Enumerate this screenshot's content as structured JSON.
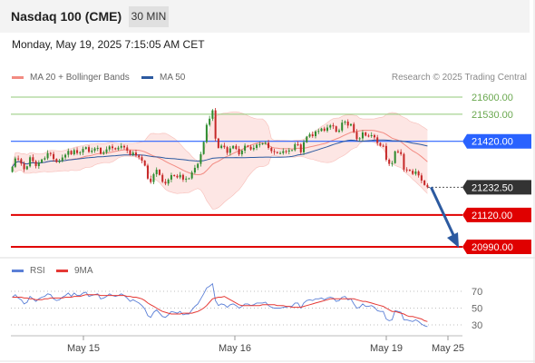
{
  "header": {
    "instrument": "Nasdaq 100 (CME)",
    "timeframe": "30 MIN",
    "datetime": "Monday, May 19, 2025 7:15:05 AM CET"
  },
  "legend": {
    "bb_label": "MA 20 + Bollinger Bands",
    "ma50_label": "MA 50",
    "copyright": "Research © 2025 Trading Central",
    "rsi_label": "RSI",
    "rsi_ma_label": "9MA"
  },
  "colors": {
    "bb": "#f28b82",
    "bb_fill": "#fde3e1",
    "ma50": "#2c5aa0",
    "up_candle": "#2e8b2e",
    "down_candle": "#c62828",
    "support": "#e00000",
    "resistance_line": "#90c978",
    "pivot_line": "#2962ff",
    "pivot_tag": "#2962ff",
    "support_tag": "#e00000",
    "current_tag": "#333333",
    "forecast_arrow": "#2c5aa0",
    "rsi": "#5b7fd6",
    "rsi_ma": "#e53935"
  },
  "chart_data": {
    "type": "candlestick",
    "price_axis": {
      "min": 20990,
      "max": 21600
    },
    "levels": [
      {
        "label": "21600.00",
        "value": 21600,
        "kind": "resistance"
      },
      {
        "label": "21530.00",
        "value": 21530,
        "kind": "resistance"
      },
      {
        "label": "21420.00",
        "value": 21420,
        "kind": "pivot"
      },
      {
        "label": "21232.50",
        "value": 21232.5,
        "kind": "current"
      },
      {
        "label": "21120.00",
        "value": 21120,
        "kind": "support"
      },
      {
        "label": "20990.00",
        "value": 20990,
        "kind": "support"
      }
    ],
    "x_ticks": [
      "May 15",
      "May 16",
      "May 19",
      "May 25"
    ],
    "close_series": [
      21316,
      21350,
      21347,
      21329,
      21306,
      21318,
      21355,
      21339,
      21319,
      21333,
      21346,
      21351,
      21372,
      21368,
      21348,
      21335,
      21341,
      21354,
      21365,
      21381,
      21367,
      21384,
      21372,
      21375,
      21389,
      21396,
      21377,
      21382,
      21391,
      21393,
      21369,
      21375,
      21387,
      21399,
      21392,
      21387,
      21394,
      21401,
      21395,
      21382,
      21365,
      21374,
      21362,
      21355,
      21341,
      21321,
      21268,
      21254,
      21286,
      21304,
      21283,
      21255,
      21248,
      21264,
      21282,
      21279,
      21273,
      21283,
      21264,
      21268,
      21269,
      21293,
      21312,
      21328,
      21368,
      21417,
      21487,
      21512,
      21546,
      21431,
      21393,
      21402,
      21396,
      21373,
      21391,
      21401,
      21389,
      21367,
      21382,
      21402,
      21398,
      21387,
      21393,
      21406,
      21408,
      21411,
      21414,
      21393,
      21380,
      21376,
      21372,
      21372,
      21380,
      21378,
      21383,
      21384,
      21408,
      21407,
      21375,
      21416,
      21439,
      21448,
      21441,
      21460,
      21462,
      21472,
      21463,
      21476,
      21485,
      21481,
      21459,
      21464,
      21496,
      21500,
      21484,
      21490,
      21458,
      21429,
      21432,
      21456,
      21443,
      21441,
      21445,
      21436,
      21413,
      21402,
      21401,
      21345,
      21328,
      21331,
      21379,
      21376,
      21368,
      21305,
      21304,
      21300,
      21287,
      21297,
      21281,
      21260,
      21242,
      21233
    ],
    "open_first": 21295,
    "rsi_axis": {
      "min": 20,
      "max": 80,
      "ticks": [
        70,
        50,
        30
      ]
    },
    "rsi": [
      63,
      66,
      62,
      60,
      55,
      57,
      64,
      61,
      58,
      61,
      63,
      64,
      67,
      66,
      61,
      59,
      60,
      63,
      65,
      68,
      64,
      68,
      65,
      65,
      68,
      69,
      64,
      65,
      66,
      67,
      61,
      62,
      64,
      67,
      65,
      64,
      65,
      67,
      65,
      62,
      58,
      60,
      58,
      56,
      53,
      49,
      41,
      39,
      45,
      48,
      44,
      40,
      39,
      42,
      46,
      45,
      44,
      46,
      42,
      43,
      43,
      48,
      52,
      55,
      61,
      67,
      74,
      76,
      79,
      59,
      53,
      55,
      54,
      51,
      54,
      55,
      53,
      50,
      52,
      55,
      55,
      53,
      54,
      56,
      56,
      56,
      57,
      53,
      51,
      50,
      50,
      50,
      51,
      51,
      52,
      52,
      56,
      56,
      50,
      56,
      59,
      60,
      59,
      61,
      61,
      62,
      60,
      62,
      63,
      62,
      58,
      59,
      63,
      64,
      60,
      61,
      55,
      50,
      51,
      55,
      52,
      52,
      53,
      51,
      47,
      46,
      46,
      37,
      35,
      36,
      47,
      46,
      45,
      36,
      36,
      35,
      34,
      36,
      34,
      31,
      29,
      28
    ],
    "rsi_ma": [
      63,
      63,
      63,
      63,
      62,
      62,
      61,
      61,
      60,
      60,
      60,
      61,
      61,
      62,
      62,
      62,
      62,
      62,
      63,
      63,
      63,
      64,
      64,
      64,
      65,
      66,
      66,
      66,
      66,
      66,
      65,
      65,
      65,
      65,
      65,
      65,
      65,
      65,
      65,
      64,
      64,
      63,
      63,
      62,
      61,
      59,
      56,
      54,
      52,
      50,
      48,
      46,
      45,
      44,
      43,
      43,
      43,
      43,
      44,
      44,
      44,
      44,
      45,
      46,
      48,
      50,
      53,
      57,
      61,
      62,
      63,
      63,
      64,
      62,
      60,
      58,
      56,
      54,
      53,
      53,
      53,
      53,
      53,
      53,
      53,
      54,
      54,
      54,
      54,
      54,
      53,
      53,
      53,
      52,
      52,
      51,
      51,
      51,
      51,
      52,
      53,
      54,
      55,
      56,
      57,
      58,
      59,
      60,
      61,
      61,
      61,
      61,
      61,
      61,
      61,
      61,
      61,
      60,
      59,
      58,
      58,
      57,
      56,
      55,
      54,
      53,
      52,
      50,
      48,
      46,
      46,
      45,
      44,
      43,
      41,
      40,
      40,
      39,
      38,
      37,
      35,
      34
    ]
  }
}
